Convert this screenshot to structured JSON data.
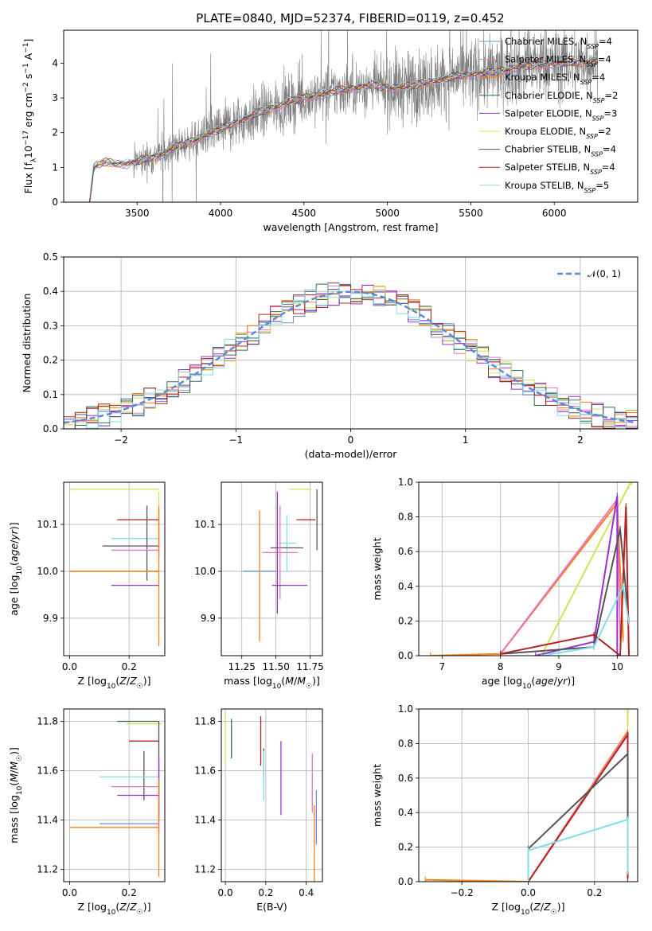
{
  "figure": {
    "title": "PLATE=0840, MJD=52374, FIBERID=0119, z=0.452"
  },
  "chart_data": [
    {
      "id": "spectrum",
      "type": "line",
      "xlabel": "wavelength [Angstrom, rest frame]",
      "ylabel": "Flux [f_λ 10^-17 erg cm^-2 s^-1 A^-1]",
      "xlim": [
        3060,
        6500
      ],
      "ylim": [
        0,
        4.95
      ],
      "xticks": [
        3500,
        4000,
        4500,
        5000,
        5500,
        6000
      ],
      "yticks": [
        0,
        1,
        2,
        3,
        4
      ],
      "grid": false,
      "legend_position": "top-right",
      "continuum_knots": {
        "x": [
          3215,
          3240,
          3300,
          3400,
          3500,
          3600,
          3700,
          3800,
          3900,
          4000,
          4100,
          4200,
          4300,
          4400,
          4500,
          4600,
          4700,
          4800,
          4900,
          5000,
          5100,
          5200,
          5300,
          5400,
          5500,
          5600,
          5700,
          5800,
          5900,
          6000,
          6100,
          6200,
          6260
        ],
        "y": [
          0.0,
          1.0,
          1.15,
          1.1,
          1.15,
          1.3,
          1.5,
          1.7,
          1.9,
          2.1,
          2.3,
          2.5,
          2.7,
          2.85,
          3.0,
          3.1,
          3.2,
          3.3,
          3.35,
          3.3,
          3.3,
          3.4,
          3.5,
          3.6,
          3.7,
          3.7,
          3.8,
          3.9,
          3.95,
          4.0,
          4.0,
          4.05,
          4.1
        ]
      },
      "series": [
        {
          "name": "Chabrier MILES, N_SSP=4",
          "color": "#6a8fd4"
        },
        {
          "name": "Salpeter MILES, N_SSP=4",
          "color": "#e377c2"
        },
        {
          "name": "Kroupa MILES, N_SSP=4",
          "color": "#ff7f0e"
        },
        {
          "name": "Chabrier ELODIE, N_SSP=2",
          "color": "#2f6e4b"
        },
        {
          "name": "Salpeter ELODIE, N_SSP=3",
          "color": "#9b30d0"
        },
        {
          "name": "Kroupa ELODIE, N_SSP=2",
          "color": "#d4e157"
        },
        {
          "name": "Chabrier STELIB, N_SSP=4",
          "color": "#555555"
        },
        {
          "name": "Salpeter STELIB, N_SSP=4",
          "color": "#b22222"
        },
        {
          "name": "Kroupa STELIB, N_SSP=5",
          "color": "#80deea"
        }
      ],
      "data_color": "#808080"
    },
    {
      "id": "residuals",
      "type": "histogram",
      "xlabel": "(data-model)/error",
      "ylabel": "Normed distribution",
      "xlim": [
        -2.5,
        2.5
      ],
      "ylim": [
        0,
        0.5
      ],
      "xticks": [
        -2,
        -1,
        0,
        1,
        2
      ],
      "yticks": [
        0.0,
        0.1,
        0.2,
        0.3,
        0.4,
        0.5
      ],
      "grid": true,
      "legend_position": "top-right",
      "legend": "N(0,1)",
      "reference_curve": {
        "name": "N(0,1)",
        "mean": 0,
        "sigma": 1,
        "color": "#5b8bd6"
      }
    },
    {
      "id": "age-vs-Z",
      "type": "scatter",
      "xlabel": "Z [log10(Z/Z☉)]",
      "ylabel": "age  [log10(age/yr)]",
      "xlim": [
        -0.02,
        0.32
      ],
      "ylim": [
        9.82,
        10.19
      ],
      "xticks": [
        0.0,
        0.2
      ],
      "yticks": [
        9.9,
        10.0,
        10.1
      ],
      "grid": true,
      "errorbars": [
        {
          "x": 0.16,
          "xerr": [
            0.16,
            0.14
          ],
          "y": 10.175,
          "yerr": [
            0.0,
            0.0
          ],
          "color": "#d4e157"
        },
        {
          "x": 0.3,
          "xerr": [
            0.0,
            0.0
          ],
          "y": 10.14,
          "yerr": [
            0.0,
            0.03
          ],
          "color": "#d4e157"
        },
        {
          "x": 0.22,
          "xerr": [
            0.06,
            0.08
          ],
          "y": 10.11,
          "yerr": [
            0,
            0
          ],
          "color": "#b22222"
        },
        {
          "x": 0.3,
          "xerr": [
            0,
            0
          ],
          "y": 10.08,
          "yerr": [
            0.05,
            0.05
          ],
          "color": "#b22222"
        },
        {
          "x": 0.22,
          "xerr": [
            0.08,
            0.08
          ],
          "y": 10.07,
          "yerr": [
            0,
            0
          ],
          "color": "#80deea"
        },
        {
          "x": 0.2,
          "xerr": [
            0.09,
            0.1
          ],
          "y": 10.054,
          "yerr": [
            0,
            0
          ],
          "color": "#555555"
        },
        {
          "x": 0.26,
          "xerr": [
            0,
            0
          ],
          "y": 10.06,
          "yerr": [
            0.08,
            0.08
          ],
          "color": "#555555"
        },
        {
          "x": 0.22,
          "xerr": [
            0.08,
            0.08
          ],
          "y": 10.045,
          "yerr": [
            0,
            0
          ],
          "color": "#e377c2"
        },
        {
          "x": 0.15,
          "xerr": [
            0.15,
            0.15
          ],
          "y": 10.0,
          "yerr": [
            0,
            0
          ],
          "color": "#6a8fd4"
        },
        {
          "x": 0.15,
          "xerr": [
            0.15,
            0.15
          ],
          "y": 10.0,
          "yerr": [
            0,
            0
          ],
          "color": "#ff7f0e"
        },
        {
          "x": 0.3,
          "xerr": [
            0,
            0
          ],
          "y": 9.99,
          "yerr": [
            0.15,
            0.15
          ],
          "color": "#ff7f0e"
        },
        {
          "x": 0.22,
          "xerr": [
            0.08,
            0.08
          ],
          "y": 9.97,
          "yerr": [
            0,
            0
          ],
          "color": "#9b30d0"
        }
      ]
    },
    {
      "id": "age-vs-mass",
      "type": "scatter",
      "xlabel": "mass [log10(M/M☉)]",
      "ylabel": "",
      "xlim": [
        11.1,
        11.84
      ],
      "ylim": [
        9.82,
        10.19
      ],
      "xticks": [
        11.25,
        11.5,
        11.75
      ],
      "yticks": [
        9.9,
        10.0,
        10.1
      ],
      "grid": true,
      "errorbars": [
        {
          "x": 11.7,
          "xerr": [
            0.1,
            0.06
          ],
          "y": 10.175,
          "yerr": [
            0,
            0
          ],
          "color": "#d4e157"
        },
        {
          "x": 11.8,
          "xerr": [
            0,
            0
          ],
          "y": 10.11,
          "yerr": [
            0.065,
            0.065
          ],
          "color": "#555555"
        },
        {
          "x": 11.72,
          "xerr": [
            0.07,
            0.07
          ],
          "y": 10.11,
          "yerr": [
            0,
            0
          ],
          "color": "#b22222"
        },
        {
          "x": 11.58,
          "xerr": [
            0.07,
            0.07
          ],
          "y": 10.06,
          "yerr": [
            0.06,
            0.06
          ],
          "color": "#80deea"
        },
        {
          "x": 11.58,
          "xerr": [
            0.12,
            0.12
          ],
          "y": 10.05,
          "yerr": [
            0,
            0
          ],
          "color": "#555555"
        },
        {
          "x": 11.53,
          "xerr": [
            0.13,
            0.13
          ],
          "y": 10.04,
          "yerr": [
            0.1,
            0.1
          ],
          "color": "#e377c2"
        },
        {
          "x": 11.51,
          "xerr": [
            0,
            0
          ],
          "y": 10.04,
          "yerr": [
            0.13,
            0.13
          ],
          "color": "#9b30d0"
        },
        {
          "x": 11.38,
          "xerr": [
            0.12,
            0.12
          ],
          "y": 10.0,
          "yerr": [
            0,
            0
          ],
          "color": "#6a8fd4"
        },
        {
          "x": 11.38,
          "xerr": [
            0,
            0
          ],
          "y": 9.99,
          "yerr": [
            0.14,
            0.14
          ],
          "color": "#ff7f0e"
        },
        {
          "x": 11.6,
          "xerr": [
            0.13,
            0.13
          ],
          "y": 9.97,
          "yerr": [
            0,
            0
          ],
          "color": "#9b30d0"
        }
      ]
    },
    {
      "id": "weight-vs-age",
      "type": "line",
      "xlabel": "age  [log10(age/yr)]",
      "ylabel": "mass weight",
      "xlim": [
        6.6,
        10.35
      ],
      "ylim": [
        0,
        1
      ],
      "xticks": [
        7,
        8,
        9,
        10
      ],
      "yticks": [
        0.0,
        0.2,
        0.4,
        0.6,
        0.8,
        1.0
      ],
      "grid": true,
      "series": [
        {
          "color": "#d4e157",
          "x": [
            8.7,
            10.2,
            10.25
          ],
          "y": [
            0.0,
            0.98,
            1.0
          ]
        },
        {
          "color": "#ff7f0e",
          "x": [
            6.8,
            8.0,
            10.0,
            10.1,
            10.1
          ],
          "y": [
            0.0,
            0.01,
            0.88,
            0.1,
            0.1
          ]
        },
        {
          "color": "#e377c2",
          "x": [
            8.0,
            10.0,
            10.05
          ],
          "y": [
            0.01,
            0.9,
            0.1
          ]
        },
        {
          "color": "#9b30d0",
          "x": [
            8.6,
            9.6,
            10.0,
            10.0
          ],
          "y": [
            0.0,
            0.08,
            0.92,
            0.0
          ]
        },
        {
          "color": "#555555",
          "x": [
            8.0,
            9.6,
            10.05,
            10.2
          ],
          "y": [
            0.01,
            0.05,
            0.73,
            0.19
          ]
        },
        {
          "color": "#b22222",
          "x": [
            8.0,
            9.6,
            10.05,
            10.15,
            10.2
          ],
          "y": [
            0.01,
            0.12,
            0.0,
            0.86,
            0.0
          ]
        },
        {
          "color": "#80deea",
          "x": [
            8.7,
            9.6,
            10.1,
            10.2
          ],
          "y": [
            0.0,
            0.05,
            0.4,
            0.19
          ]
        }
      ]
    },
    {
      "id": "mass-vs-Z",
      "type": "scatter",
      "xlabel": "Z [log10(Z/Z☉)]",
      "ylabel": "mass [log10(M/M☉)]",
      "xlim": [
        -0.02,
        0.32
      ],
      "ylim": [
        11.15,
        11.85
      ],
      "xticks": [
        0.0,
        0.2
      ],
      "yticks": [
        11.2,
        11.4,
        11.6,
        11.8
      ],
      "grid": true,
      "errorbars": [
        {
          "x": 0.23,
          "xerr": [
            0.07,
            0.07
          ],
          "y": 11.8,
          "yerr": [
            0,
            0
          ],
          "color": "#2f6e4b"
        },
        {
          "x": 0.25,
          "xerr": [
            0.06,
            0.06
          ],
          "y": 11.79,
          "yerr": [
            0,
            0
          ],
          "color": "#d4e157"
        },
        {
          "x": 0.3,
          "xerr": [
            0,
            0
          ],
          "y": 11.6,
          "yerr": [
            0.2,
            0.2
          ],
          "color": "#555555"
        },
        {
          "x": 0.25,
          "xerr": [
            0.05,
            0.05
          ],
          "y": 11.72,
          "yerr": [
            0,
            0
          ],
          "color": "#b22222"
        },
        {
          "x": 0.25,
          "xerr": [
            0,
            0
          ],
          "y": 11.58,
          "yerr": [
            0.1,
            0.1
          ],
          "color": "#555555"
        },
        {
          "x": 0.2,
          "xerr": [
            0.1,
            0.1
          ],
          "y": 11.575,
          "yerr": [
            0,
            0
          ],
          "color": "#80deea"
        },
        {
          "x": 0.22,
          "xerr": [
            0.08,
            0.08
          ],
          "y": 11.535,
          "yerr": [
            0,
            0
          ],
          "color": "#e377c2"
        },
        {
          "x": 0.23,
          "xerr": [
            0.07,
            0.07
          ],
          "y": 11.5,
          "yerr": [
            0,
            0
          ],
          "color": "#9b30d0"
        },
        {
          "x": 0.3,
          "xerr": [
            0,
            0
          ],
          "y": 11.5,
          "yerr": [
            0.15,
            0.15
          ],
          "color": "#9b30d0"
        },
        {
          "x": 0.2,
          "xerr": [
            0.1,
            0.1
          ],
          "y": 11.385,
          "yerr": [
            0,
            0
          ],
          "color": "#6a8fd4"
        },
        {
          "x": 0.15,
          "xerr": [
            0.15,
            0.15
          ],
          "y": 11.37,
          "yerr": [
            0,
            0
          ],
          "color": "#ff7f0e"
        },
        {
          "x": 0.3,
          "xerr": [
            0,
            0
          ],
          "y": 11.37,
          "yerr": [
            0.2,
            0.2
          ],
          "color": "#ff7f0e"
        }
      ]
    },
    {
      "id": "mass-vs-ebv",
      "type": "scatter",
      "xlabel": "E(B-V)",
      "ylabel": "",
      "xlim": [
        -0.02,
        0.48
      ],
      "ylim": [
        11.15,
        11.85
      ],
      "xticks": [
        0.0,
        0.2,
        0.4
      ],
      "yticks": [
        11.2,
        11.4,
        11.6,
        11.8
      ],
      "grid": true,
      "errorbars": [
        {
          "x": 0.0,
          "xerr": [
            0,
            0
          ],
          "y": 11.73,
          "yerr": [
            0.1,
            0.1
          ],
          "color": "#d4e157"
        },
        {
          "x": 0.03,
          "xerr": [
            0,
            0
          ],
          "y": 11.73,
          "yerr": [
            0.08,
            0.08
          ],
          "color": "#2f6e4b"
        },
        {
          "x": 0.175,
          "xerr": [
            0,
            0
          ],
          "y": 11.72,
          "yerr": [
            0.1,
            0.1
          ],
          "color": "#b22222"
        },
        {
          "x": 0.19,
          "xerr": [
            0,
            0
          ],
          "y": 11.63,
          "yerr": [
            0.06,
            0.06
          ],
          "color": "#555555"
        },
        {
          "x": 0.19,
          "xerr": [
            0,
            0
          ],
          "y": 11.58,
          "yerr": [
            0.1,
            0.1
          ],
          "color": "#80deea"
        },
        {
          "x": 0.275,
          "xerr": [
            0,
            0
          ],
          "y": 11.57,
          "yerr": [
            0.15,
            0.15
          ],
          "color": "#9b30d0"
        },
        {
          "x": 0.43,
          "xerr": [
            0,
            0
          ],
          "y": 11.55,
          "yerr": [
            0.12,
            0.12
          ],
          "color": "#e377c2"
        },
        {
          "x": 0.45,
          "xerr": [
            0,
            0
          ],
          "y": 11.41,
          "yerr": [
            0.11,
            0.11
          ],
          "color": "#6a8fd4"
        },
        {
          "x": 0.44,
          "xerr": [
            0,
            0
          ],
          "y": 11.3,
          "yerr": [
            0.16,
            0.16
          ],
          "color": "#ff7f0e"
        }
      ]
    },
    {
      "id": "weight-vs-Z",
      "type": "line",
      "xlabel": "Z [log10(Z/Z☉)]",
      "ylabel": "mass weight",
      "xlim": [
        -0.33,
        0.33
      ],
      "ylim": [
        0,
        1
      ],
      "xticks": [
        -0.2,
        0.0,
        0.2
      ],
      "yticks": [
        0.0,
        0.2,
        0.4,
        0.6,
        0.8,
        1.0
      ],
      "grid": true,
      "series": [
        {
          "color": "#ff7f0e",
          "x": [
            -0.31,
            0.0,
            0.3
          ],
          "y": [
            0.01,
            0.0,
            0.87
          ]
        },
        {
          "color": "#e377c2",
          "x": [
            0.0,
            0.3
          ],
          "y": [
            0.0,
            0.86
          ]
        },
        {
          "color": "#b22222",
          "x": [
            0.0,
            0.3,
            0.3
          ],
          "y": [
            0.0,
            0.85,
            0.02
          ]
        },
        {
          "color": "#555555",
          "x": [
            0.0,
            0.3,
            0.3
          ],
          "y": [
            0.19,
            0.74,
            0.06
          ]
        },
        {
          "color": "#80deea",
          "x": [
            0.0,
            0.0,
            0.3,
            0.3
          ],
          "y": [
            0.0,
            0.18,
            0.36,
            0.06
          ]
        },
        {
          "color": "#d4e157",
          "x": [
            0.3,
            0.3
          ],
          "y": [
            0.9,
            1.0
          ]
        }
      ]
    }
  ]
}
